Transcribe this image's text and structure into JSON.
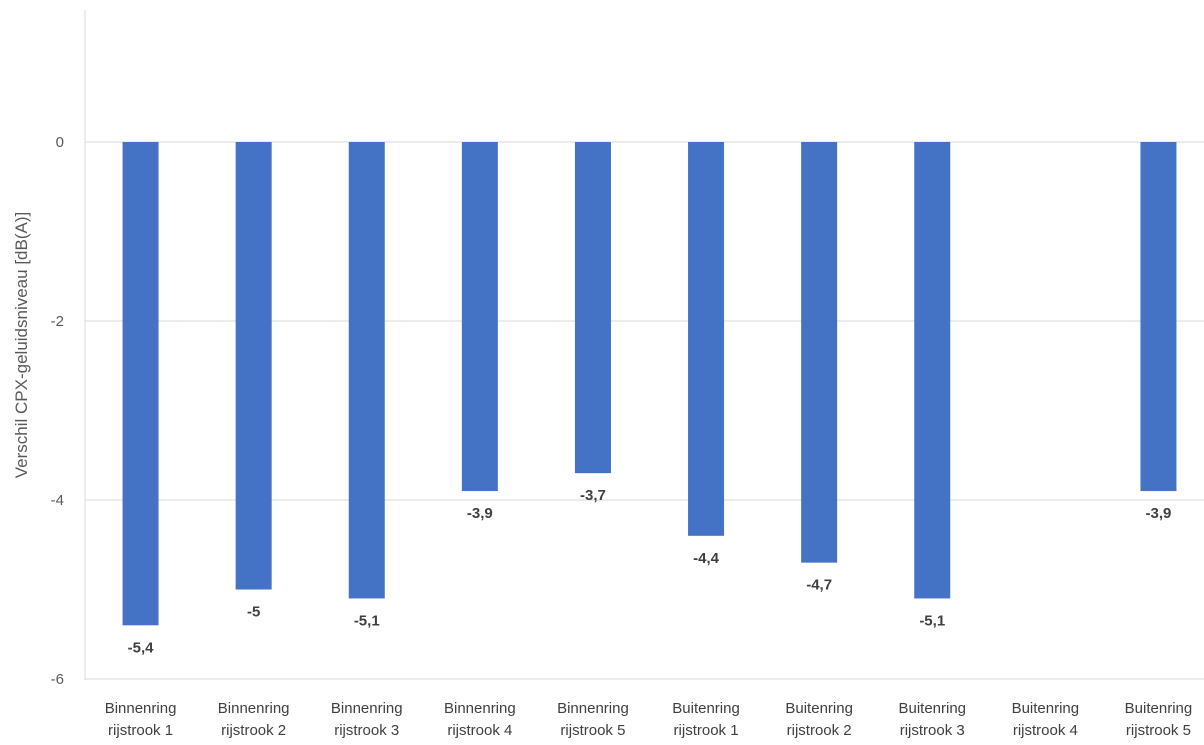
{
  "chart_data": {
    "type": "bar",
    "title": "",
    "xlabel": "",
    "ylabel": "Verschil CPX-geluidsniveau [dB(A)]",
    "ylim": [
      -6,
      1.5
    ],
    "yticks": [
      0,
      -2,
      -4,
      -6
    ],
    "grid": true,
    "legend": "none",
    "bar_color": "#4472C4",
    "categories": [
      [
        "Binnenring",
        "rijstrook 1"
      ],
      [
        "Binnenring",
        "rijstrook 2"
      ],
      [
        "Binnenring",
        "rijstrook 3"
      ],
      [
        "Binnenring",
        "rijstrook 4"
      ],
      [
        "Binnenring",
        "rijstrook 5"
      ],
      [
        "Buitenring",
        "rijstrook 1"
      ],
      [
        "Buitenring",
        "rijstrook 2"
      ],
      [
        "Buitenring",
        "rijstrook 3"
      ],
      [
        "Buitenring",
        "rijstrook 4"
      ],
      [
        "Buitenring",
        "rijstrook 5"
      ]
    ],
    "values": [
      -5.4,
      -5,
      -5.1,
      -3.9,
      -3.7,
      -4.4,
      -4.7,
      -5.1,
      null,
      -3.9
    ],
    "data_labels": [
      "-5,4",
      "-5",
      "-5,1",
      "-3,9",
      "-3,7",
      "-4,4",
      "-4,7",
      "-5,1",
      "",
      "-3,9"
    ],
    "ytick_labels": [
      "0",
      "-2",
      "-4",
      "-6"
    ]
  }
}
